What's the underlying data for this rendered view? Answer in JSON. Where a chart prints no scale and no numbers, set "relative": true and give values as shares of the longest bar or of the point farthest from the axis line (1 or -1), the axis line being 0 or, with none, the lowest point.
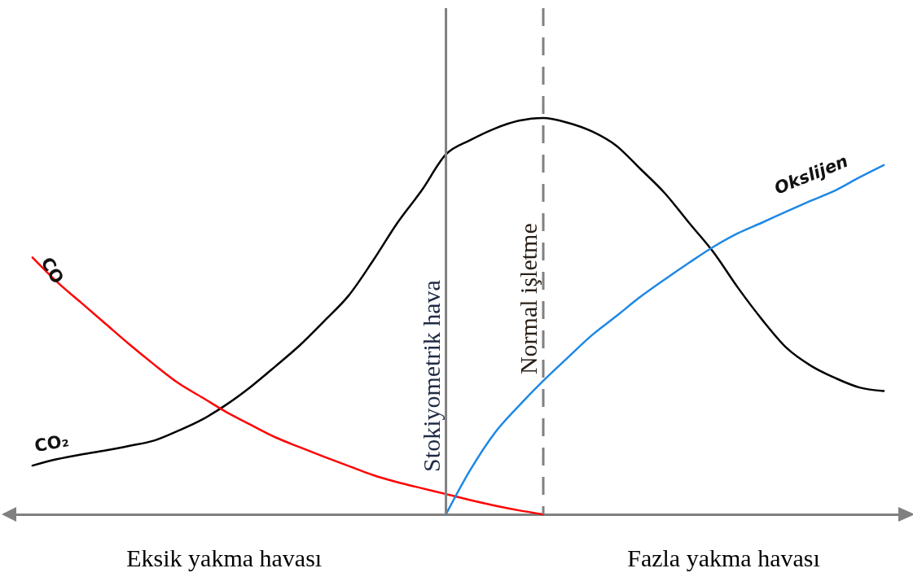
{
  "chart_data": {
    "type": "line",
    "relative": true,
    "categories": [
      null,
      null,
      null,
      null,
      null,
      null,
      null,
      null,
      null,
      null,
      null,
      null,
      null,
      null,
      null,
      null,
      null,
      null,
      null,
      null,
      null,
      null,
      null,
      null,
      null,
      null,
      null,
      null,
      null,
      null,
      null,
      null,
      null,
      null,
      null,
      null
    ],
    "series": [
      {
        "name": "CO₂",
        "color": "#000000",
        "values": [
          0.123,
          0.139,
          0.151,
          0.161,
          0.173,
          0.186,
          0.211,
          0.24,
          0.278,
          0.323,
          0.374,
          0.427,
          0.488,
          0.552,
          0.64,
          0.735,
          0.817,
          0.908,
          0.944,
          0.973,
          0.993,
          1,
          0.988,
          0.966,
          0.93,
          0.871,
          0.81,
          0.735,
          0.661,
          0.572,
          0.491,
          0.42,
          0.375,
          0.344,
          0.32,
          0.311
        ]
      },
      {
        "name": "CO",
        "color": "#ff0000",
        "values": [
          0.648,
          0.587,
          0.534,
          0.481,
          0.428,
          0.378,
          0.331,
          0.294,
          0.257,
          0.225,
          0.194,
          0.169,
          0.145,
          0.122,
          0.099,
          0.081,
          0.066,
          0.051,
          0.036,
          0.022,
          0.01,
          0,
          null,
          null,
          null,
          null,
          null,
          null,
          null,
          null,
          null,
          null,
          null,
          null,
          null,
          null
        ]
      },
      {
        "name": "Okslijen",
        "color": "#1e88e5",
        "values": [
          null,
          null,
          null,
          null,
          null,
          null,
          null,
          null,
          null,
          null,
          null,
          null,
          null,
          null,
          null,
          null,
          null,
          0,
          0.112,
          0.205,
          0.274,
          0.337,
          0.395,
          0.452,
          0.5,
          0.549,
          0.593,
          0.635,
          0.675,
          0.709,
          0.736,
          0.764,
          0.791,
          0.817,
          0.85,
          0.881
        ]
      }
    ],
    "ref_lines": [
      {
        "axis": "x",
        "label": "Stokiyometrik hava",
        "color": "#808080",
        "line_style": "solid"
      },
      {
        "axis": "x",
        "label": "Normal işletme",
        "color": "#808080",
        "line_style": "dashed"
      }
    ],
    "annotations": [
      "Eksik yakma havası",
      "Fazla yakma havası"
    ]
  }
}
